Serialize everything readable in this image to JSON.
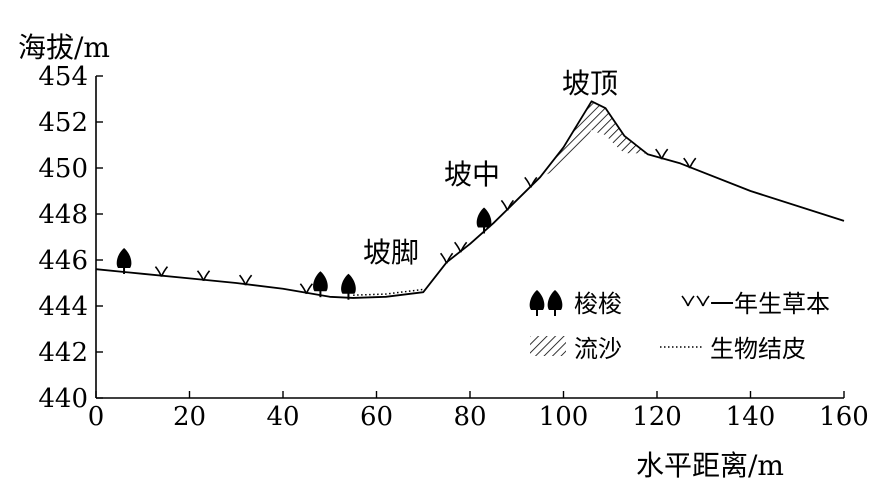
{
  "axes": {
    "y_label": "海拔/m",
    "x_label": "水平距离/m",
    "y_ticks": [
      "454",
      "452",
      "450",
      "448",
      "446",
      "444",
      "442",
      "440"
    ],
    "x_ticks": [
      "0",
      "20",
      "40",
      "60",
      "80",
      "100",
      "120",
      "140",
      "160"
    ]
  },
  "labels": {
    "slope_top": "坡顶",
    "slope_middle": "坡中",
    "slope_foot": "坡脚"
  },
  "legend": {
    "suosuo": "梭梭",
    "herb": "一年生草本",
    "sand": "流沙",
    "crust": "生物结皮"
  },
  "chart_data": {
    "type": "line",
    "xlim": [
      0,
      160
    ],
    "ylim": [
      440,
      454
    ],
    "profile": [
      {
        "x": 0,
        "y": 445.6
      },
      {
        "x": 10,
        "y": 445.4
      },
      {
        "x": 20,
        "y": 445.2
      },
      {
        "x": 30,
        "y": 445.0
      },
      {
        "x": 40,
        "y": 444.75
      },
      {
        "x": 50,
        "y": 444.4
      },
      {
        "x": 55,
        "y": 444.35
      },
      {
        "x": 62,
        "y": 444.4
      },
      {
        "x": 70,
        "y": 444.6
      },
      {
        "x": 75,
        "y": 445.9
      },
      {
        "x": 80,
        "y": 446.7
      },
      {
        "x": 85,
        "y": 447.6
      },
      {
        "x": 90,
        "y": 448.6
      },
      {
        "x": 95,
        "y": 449.6
      },
      {
        "x": 100,
        "y": 450.9
      },
      {
        "x": 103,
        "y": 451.9
      },
      {
        "x": 106,
        "y": 452.9
      },
      {
        "x": 109,
        "y": 452.6
      },
      {
        "x": 113,
        "y": 451.4
      },
      {
        "x": 118,
        "y": 450.6
      },
      {
        "x": 125,
        "y": 450.2
      },
      {
        "x": 140,
        "y": 449.0
      },
      {
        "x": 160,
        "y": 447.7
      }
    ],
    "sand_region_x": [
      95,
      121
    ],
    "crust_region_x": [
      55,
      70
    ],
    "suosuo_x": [
      6,
      48,
      54,
      83
    ],
    "herb_x": [
      14,
      23,
      32,
      45,
      75,
      78,
      88,
      93,
      121,
      127
    ]
  }
}
